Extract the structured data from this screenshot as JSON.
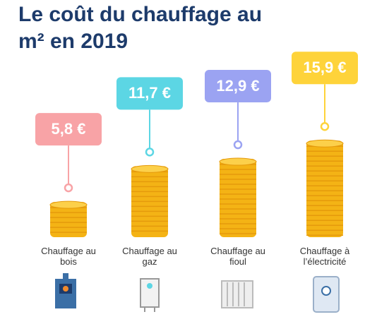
{
  "chart_data": {
    "type": "bar",
    "title": "Le coût du chauffage au m² en 2019",
    "categories": [
      "Chauffage au bois",
      "Chauffage au gaz",
      "Chauffage au fioul",
      "Chauffage à l’électricité"
    ],
    "values": [
      5.8,
      11.7,
      12.9,
      15.9
    ],
    "value_labels": [
      "5,8 €",
      "11,7 €",
      "12,9 €",
      "15,9 €"
    ],
    "colors": [
      "#f8a3a6",
      "#5cd6e4",
      "#9ba3f2",
      "#fed33a"
    ]
  }
}
